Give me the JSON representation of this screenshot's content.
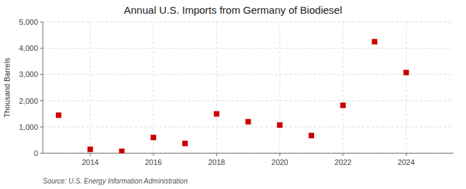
{
  "chart_data": {
    "type": "scatter",
    "title": "Annual U.S. Imports from Germany of Biodiesel",
    "ylabel": "Thousand Barrels",
    "annotation": "Source: U.S. Energy Information Administration",
    "x": [
      2013,
      2014,
      2015,
      2016,
      2017,
      2018,
      2019,
      2020,
      2021,
      2022,
      2023,
      2024
    ],
    "values": [
      1450,
      150,
      75,
      600,
      375,
      1500,
      1200,
      1075,
      675,
      1825,
      4250,
      3075
    ],
    "color": "#cc0000",
    "marker": "square",
    "xlim": [
      2012.5,
      2025.5
    ],
    "xticks": [
      2014,
      2016,
      2018,
      2020,
      2022,
      2024
    ],
    "ylim": [
      0,
      5000
    ],
    "yticks": [
      0,
      {
        "value": 1000,
        "label": "1,000"
      },
      {
        "value": 2000,
        "label": "2,000"
      },
      {
        "value": 3000,
        "label": "3,000"
      },
      {
        "value": 4000,
        "label": "4,000"
      },
      {
        "value": 5000,
        "label": "5,000"
      }
    ],
    "grid": true
  }
}
